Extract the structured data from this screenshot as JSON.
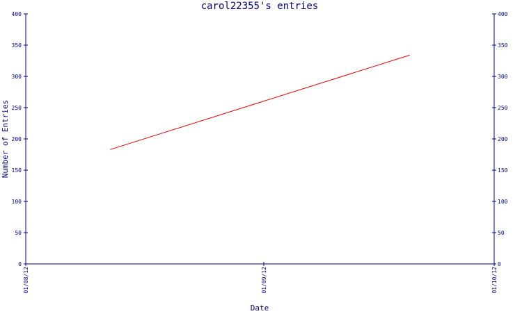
{
  "chart_data": {
    "type": "line",
    "title": "carol22355's entries",
    "xlabel": "Date",
    "ylabel": "Number of Entries",
    "x_ticks": [
      "01/08/12",
      "01/09/12",
      "01/10/12"
    ],
    "ylim": [
      0,
      400
    ],
    "y_ticks": [
      0,
      50,
      100,
      150,
      200,
      250,
      300,
      350,
      400
    ],
    "y_axis_mirrored_right": true,
    "grid": false,
    "line_color": "#e00000",
    "axis_color": "#000080",
    "series": [
      {
        "points": [
          {
            "x": "2012-08-12",
            "y": 183
          },
          {
            "x": "2012-09-20",
            "y": 334
          }
        ]
      }
    ]
  }
}
